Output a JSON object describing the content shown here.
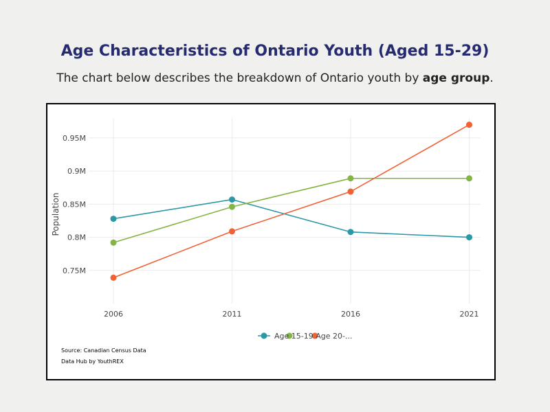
{
  "header": {
    "title": "Age Characteristics of Ontario Youth (Aged 15-29)",
    "subtitle_prefix": "The chart below describes the breakdown of Ontario youth by ",
    "subtitle_bold": "age group",
    "subtitle_suffix": "."
  },
  "footer": {
    "source": "Source: Canadian Census Data",
    "credit": "Data Hub by YouthREX"
  },
  "chart_data": {
    "type": "line",
    "x": [
      "2006",
      "2011",
      "2016",
      "2021"
    ],
    "ylabel": "Population",
    "xlabel": "",
    "ylim": [
      0.7,
      0.98
    ],
    "yticks": [
      0.75,
      0.8,
      0.85,
      0.9,
      0.95
    ],
    "ytick_labels": [
      "0.75M",
      "0.8M",
      "0.85M",
      "0.9M",
      "0.95M"
    ],
    "grid": true,
    "legend_position": "bottom",
    "legend_text": "Age 15-19 Age 20-...",
    "series": [
      {
        "color": "#2a98a6",
        "values": [
          0.828,
          0.857,
          0.808,
          0.8
        ]
      },
      {
        "color": "#84b443",
        "values": [
          0.792,
          0.846,
          0.889,
          0.889
        ]
      },
      {
        "color": "#f06233",
        "values": [
          0.739,
          0.809,
          0.869,
          0.97
        ]
      }
    ],
    "y_unit": "millions"
  }
}
